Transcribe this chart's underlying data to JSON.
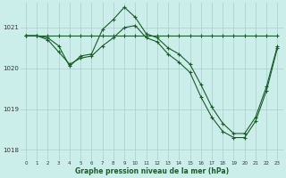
{
  "bg_color": "#cceeea",
  "grid_color": "#aacccc",
  "line_color": "#1a5c2a",
  "xlabel": "Graphe pression niveau de la mer (hPa)",
  "xlim": [
    -0.5,
    23.5
  ],
  "ylim": [
    1017.75,
    1021.6
  ],
  "yticks": [
    1018,
    1019,
    1020,
    1021
  ],
  "xticks": [
    0,
    1,
    2,
    3,
    4,
    5,
    6,
    7,
    8,
    9,
    10,
    11,
    12,
    13,
    14,
    15,
    16,
    17,
    18,
    19,
    20,
    21,
    22,
    23
  ],
  "series1_x": [
    0,
    1,
    2,
    3,
    4,
    5,
    6,
    7,
    8,
    9,
    10,
    11,
    12,
    13,
    14,
    15,
    16,
    17,
    18,
    19,
    20,
    21,
    22,
    23
  ],
  "series1_y": [
    1020.8,
    1020.8,
    1020.8,
    1020.8,
    1020.8,
    1020.8,
    1020.8,
    1020.8,
    1020.8,
    1020.8,
    1020.8,
    1020.8,
    1020.8,
    1020.8,
    1020.8,
    1020.8,
    1020.8,
    1020.8,
    1020.8,
    1020.8,
    1020.8,
    1020.8,
    1020.8,
    1020.8
  ],
  "series2_x": [
    0,
    1,
    2,
    3,
    4,
    5,
    6,
    7,
    8,
    9,
    10,
    11,
    12,
    13,
    14,
    15,
    16,
    17,
    18,
    19,
    20,
    21,
    22,
    23
  ],
  "series2_y": [
    1020.8,
    1020.8,
    1020.75,
    1020.55,
    1020.05,
    1020.3,
    1020.35,
    1020.95,
    1021.2,
    1021.5,
    1021.25,
    1020.85,
    1020.75,
    1020.5,
    1020.35,
    1020.1,
    1019.6,
    1019.05,
    1018.65,
    1018.4,
    1018.4,
    1018.8,
    1019.55,
    1020.55
  ],
  "series3_x": [
    0,
    1,
    2,
    3,
    4,
    5,
    6,
    7,
    8,
    9,
    10,
    11,
    12,
    13,
    14,
    15,
    16,
    17,
    18,
    19,
    20,
    21,
    22,
    23
  ],
  "series3_y": [
    1020.8,
    1020.8,
    1020.7,
    1020.4,
    1020.1,
    1020.25,
    1020.3,
    1020.55,
    1020.75,
    1021.0,
    1021.05,
    1020.75,
    1020.65,
    1020.35,
    1020.15,
    1019.9,
    1019.3,
    1018.8,
    1018.45,
    1018.3,
    1018.3,
    1018.7,
    1019.45,
    1020.5
  ]
}
